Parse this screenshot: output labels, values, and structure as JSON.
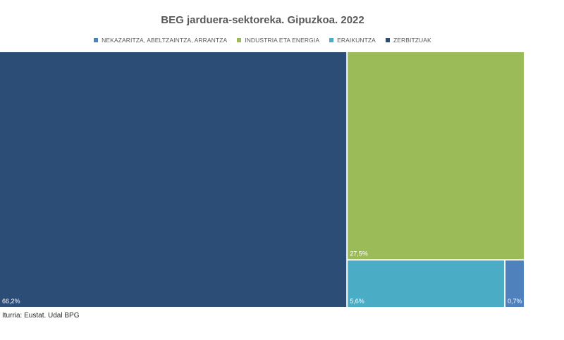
{
  "chart_data": {
    "type": "treemap",
    "title": "BEG jarduera-sektoreka. Gipuzkoa. 2022",
    "legend_position": "top",
    "series": [
      {
        "name": "NEKAZARITZA, ABELTZAINTZA, ARRANTZA",
        "value": 0.7,
        "label": "0,7%",
        "color": "#4f81bd"
      },
      {
        "name": "INDUSTRIA ETA ENERGIA",
        "value": 27.5,
        "label": "27,5%",
        "color": "#9bbb59"
      },
      {
        "name": "ERAIKUNTZA",
        "value": 5.6,
        "label": "5,6%",
        "color": "#4bacc6"
      },
      {
        "name": "ZERBITZUAK",
        "value": 66.2,
        "label": "66,2%",
        "color": "#2c4d75"
      }
    ]
  },
  "source": "Iturria: Eustat. Udal BPG"
}
